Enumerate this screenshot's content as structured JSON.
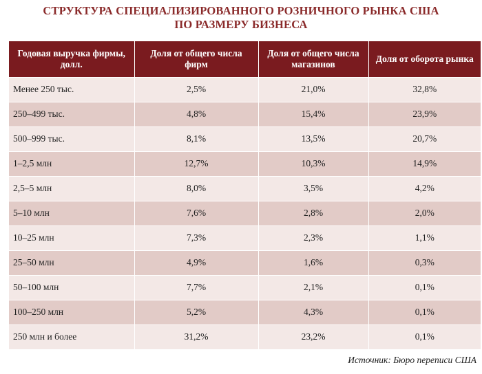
{
  "title": {
    "line1": "СТРУКТУРА СПЕЦИАЛИЗИРОВАННОГО РОЗНИЧНОГО РЫНКА США",
    "line2": "ПО РАЗМЕРУ БИЗНЕСА"
  },
  "table": {
    "headers": [
      "Годовая выручка фирмы, долл.",
      "Доля от общего числа фирм",
      "Доля от общего числа магазинов",
      "Доля от оборота рынка"
    ],
    "rows": [
      [
        "Менее 250 тыс.",
        "2,5%",
        "21,0%",
        "32,8%"
      ],
      [
        "250–499 тыс.",
        "4,8%",
        "15,4%",
        "23,9%"
      ],
      [
        "500–999 тыс.",
        "8,1%",
        "13,5%",
        "20,7%"
      ],
      [
        "1–2,5 млн",
        "12,7%",
        "10,3%",
        "14,9%"
      ],
      [
        "2,5–5 млн",
        "8,0%",
        "3,5%",
        "4,2%"
      ],
      [
        "5–10 млн",
        "7,6%",
        "2,8%",
        "2,0%"
      ],
      [
        "10–25 млн",
        "7,3%",
        "2,3%",
        "1,1%"
      ],
      [
        "25–50 млн",
        "4,9%",
        "1,6%",
        "0,3%"
      ],
      [
        "50–100 млн",
        "7,7%",
        "2,1%",
        "0,1%"
      ],
      [
        "100–250 млн",
        "5,2%",
        "4,3%",
        "0,1%"
      ],
      [
        "250 млн и более",
        "31,2%",
        "23,2%",
        "0,1%"
      ]
    ]
  },
  "source": "Источник: Бюро переписи США",
  "colors": {
    "title": "#8a2a2a",
    "header_bg": "#7a1b1f",
    "row_light": "#f3e8e6",
    "row_dark": "#e2cbc7"
  }
}
